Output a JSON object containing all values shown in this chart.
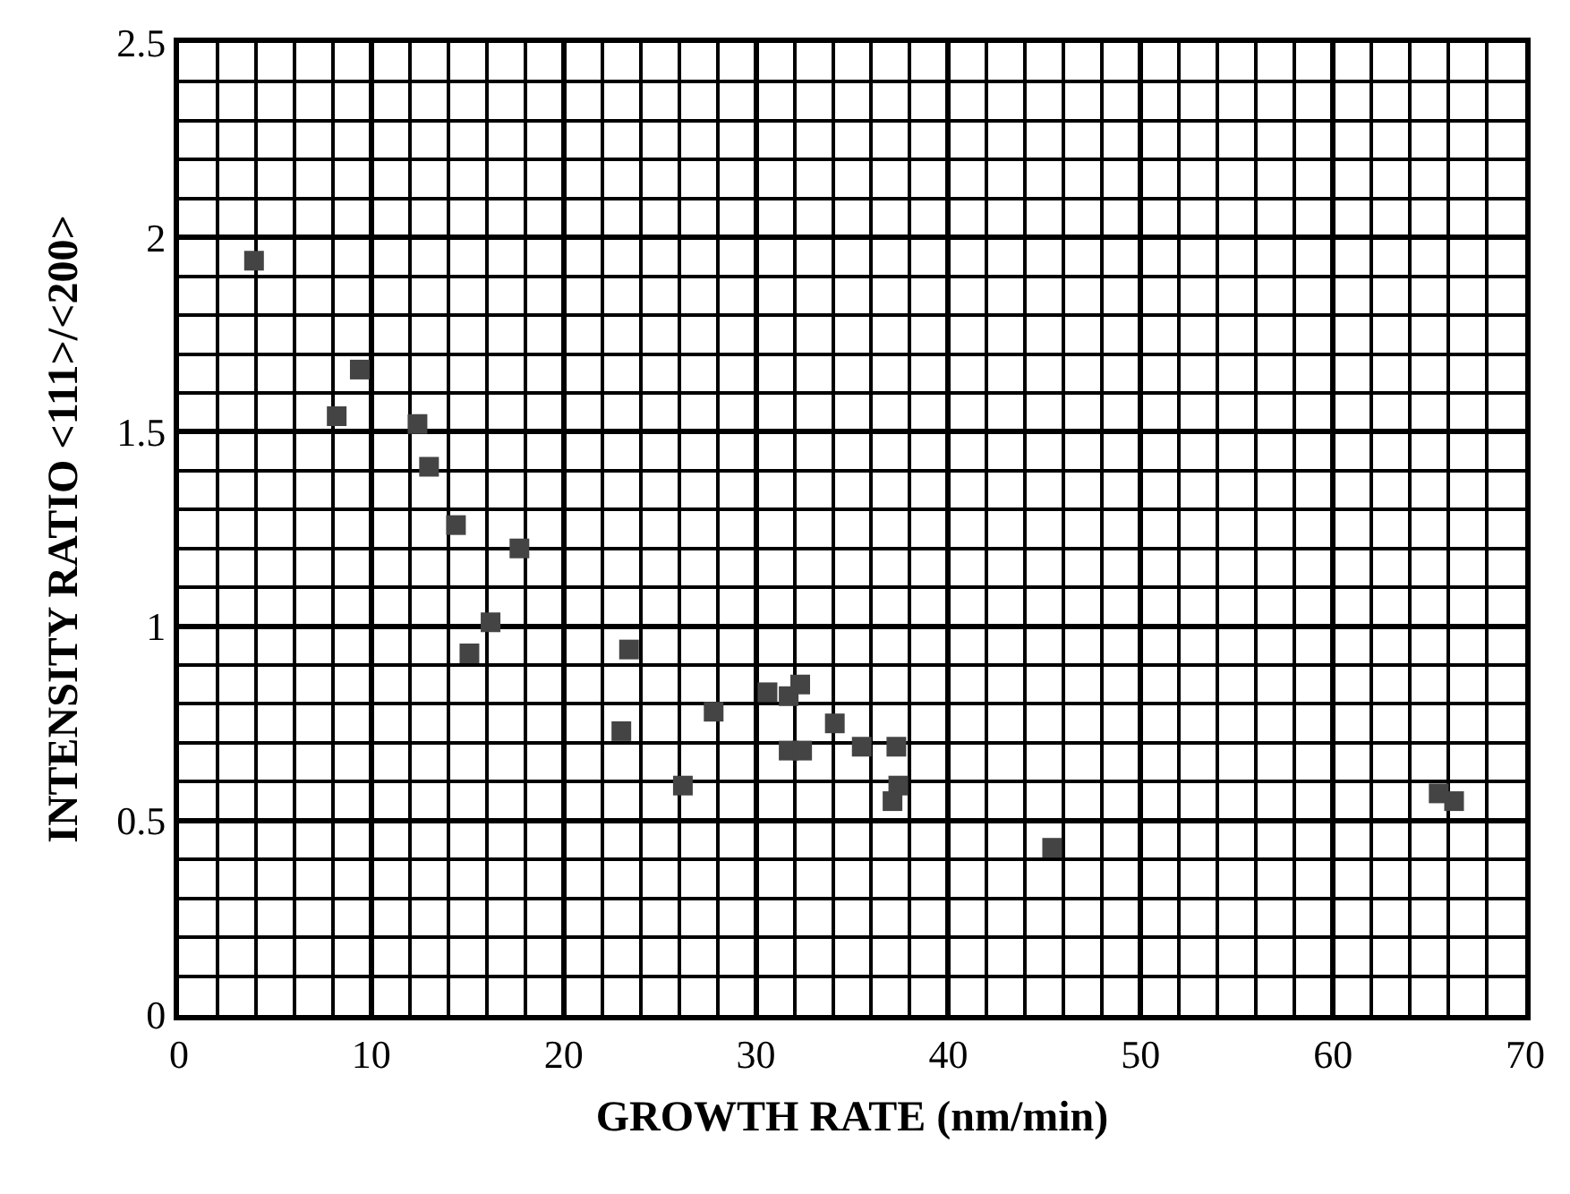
{
  "chart_data": {
    "type": "scatter",
    "xlabel": "GROWTH RATE (nm/min)",
    "ylabel": "INTENSITY RATIO <111>/<200>",
    "x": [
      3.9,
      8.2,
      9.4,
      12.4,
      13.0,
      14.4,
      15.1,
      16.2,
      17.7,
      23.4,
      23.0,
      26.2,
      27.8,
      30.6,
      31.7,
      32.3,
      31.7,
      32.4,
      34.1,
      35.5,
      37.3,
      37.4,
      37.1,
      45.4,
      65.5,
      66.3
    ],
    "values": [
      1.94,
      1.54,
      1.66,
      1.52,
      1.41,
      1.26,
      0.93,
      1.01,
      1.2,
      0.94,
      0.73,
      0.59,
      0.78,
      0.83,
      0.82,
      0.85,
      0.68,
      0.68,
      0.75,
      0.69,
      0.69,
      0.59,
      0.55,
      0.43,
      0.57,
      0.55
    ],
    "color": "#444444",
    "marker": "square",
    "xlim": [
      0,
      70
    ],
    "xticks": [
      0,
      10,
      20,
      30,
      40,
      50,
      60,
      70
    ],
    "ylim": [
      0,
      2.5
    ],
    "yticks": [
      0,
      0.5,
      1,
      1.5,
      2,
      2.5
    ],
    "grid": true
  }
}
